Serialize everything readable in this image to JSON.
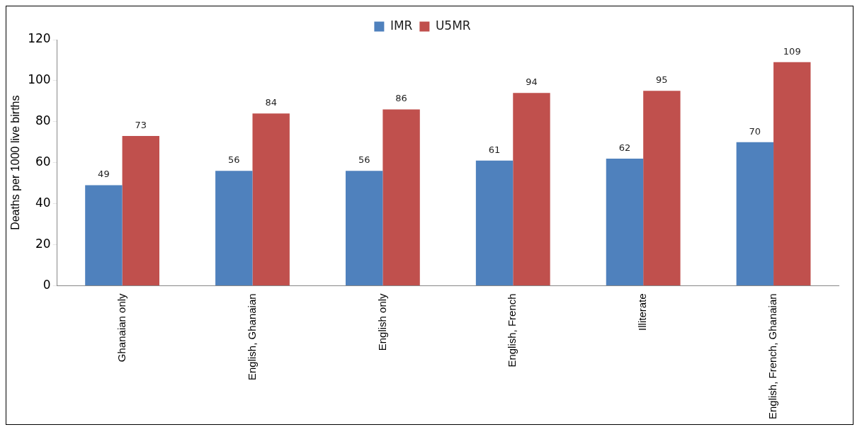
{
  "chart_data": {
    "type": "bar",
    "ylabel": "Deaths per 1000 live births",
    "categories": [
      "Ghanaian only",
      "English, Ghanaian",
      "English only",
      "English, French",
      "Illiterate",
      "English, French, Ghanaian"
    ],
    "series": [
      {
        "name": "IMR",
        "color": "#4f81bd",
        "values": [
          49,
          56,
          56,
          61,
          62,
          70
        ]
      },
      {
        "name": "U5MR",
        "color": "#c0504d",
        "values": [
          73,
          84,
          86,
          94,
          95,
          109
        ]
      }
    ],
    "ylim": [
      0,
      120
    ],
    "yticks": [
      0,
      20,
      40,
      60,
      80,
      100,
      120
    ],
    "grid": false,
    "legend": "top",
    "data_labels": true
  }
}
